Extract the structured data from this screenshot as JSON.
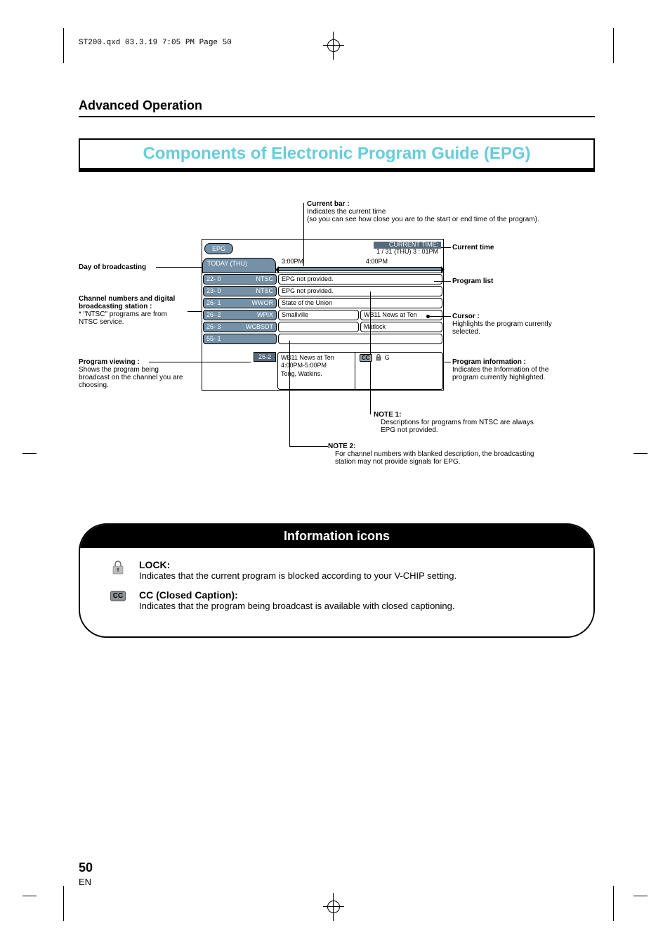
{
  "meta": {
    "header": "ST200.qxd  03.3.19 7:05 PM  Page 50"
  },
  "section_title": "Advanced Operation",
  "main_title": "Components of Electronic Program Guide (EPG)",
  "main_title_color": "#66cddb",
  "callouts": {
    "current_bar_title": "Current bar :",
    "current_bar_l1": "Indicates the current time",
    "current_bar_l2": "(so you can see how close you are to the start or end time of the program).",
    "current_time_label": "Current time",
    "day_label": "Day of broadcasting",
    "channels_title": "Channel numbers and digital",
    "channels_l2": "broadcasting station :",
    "channels_l3": "* \"NTSC\" programs are from",
    "channels_l4": "NTSC service.",
    "program_list_label": "Program list",
    "cursor_title": "Cursor :",
    "cursor_l1": "Highlights the program currently",
    "cursor_l2": "selected.",
    "viewing_title": "Program viewing :",
    "viewing_l1": "Shows the program being",
    "viewing_l2": "broadcast on the channel you are",
    "viewing_l3": "choosing.",
    "program_info_title": "Program information :",
    "program_info_l1": "Indicates the Information of the",
    "program_info_l2": "program currently highlighted.",
    "note1_title": "NOTE 1:",
    "note1_l1": "Descriptions for programs from NTSC are always",
    "note1_l2": "EPG not provided.",
    "note2_title": "NOTE 2:",
    "note2_l1": "For channel numbers with blanked description, the broadcasting",
    "note2_l2": "station may not provide signals for EPG."
  },
  "epg": {
    "title": "EPG",
    "current_time_l1": "CURRENT TIME:",
    "current_time_l2": "1 / 31 (THU)  3 : 01PM",
    "day": "TODAY (THU)",
    "time1": "3:00PM",
    "time2": "4:00PM",
    "channels": [
      {
        "num": "22-  0",
        "name": "NTSC",
        "prog": "EPG not provided."
      },
      {
        "num": "23-  0",
        "name": "NTSC",
        "prog": "EPG not provided."
      },
      {
        "num": "26-  1",
        "name": "WWOR",
        "prog": "State of the Union"
      },
      {
        "num": "26-  2",
        "name": "WPIX",
        "prog": "Smallville",
        "prog2": "WB11 News at Ten"
      },
      {
        "num": "26-  3",
        "name": "WCBSDT",
        "prog": "",
        "prog2": "Matlock"
      },
      {
        "num": "55-  1",
        "name": "",
        "prog": ""
      }
    ],
    "viewing_ch": "26-2",
    "viewing_title": "WB11 News at Ten",
    "viewing_time": "4:00PM-5:00PM",
    "viewing_desc": "Tong, Watkins.",
    "viewing_rating": "G",
    "colors": {
      "pill": "#7591a7",
      "dark": "#556a7c"
    }
  },
  "info_panel": {
    "header": "Information icons",
    "lock_title": "LOCK:",
    "lock_desc": "Indicates that the current program is blocked according to your V-CHIP setting.",
    "cc_title": "CC (Closed Caption):",
    "cc_desc": "Indicates that the program being broadcast is available with closed captioning.",
    "cc_badge": "CC"
  },
  "page": {
    "number": "50",
    "lang": "EN"
  }
}
